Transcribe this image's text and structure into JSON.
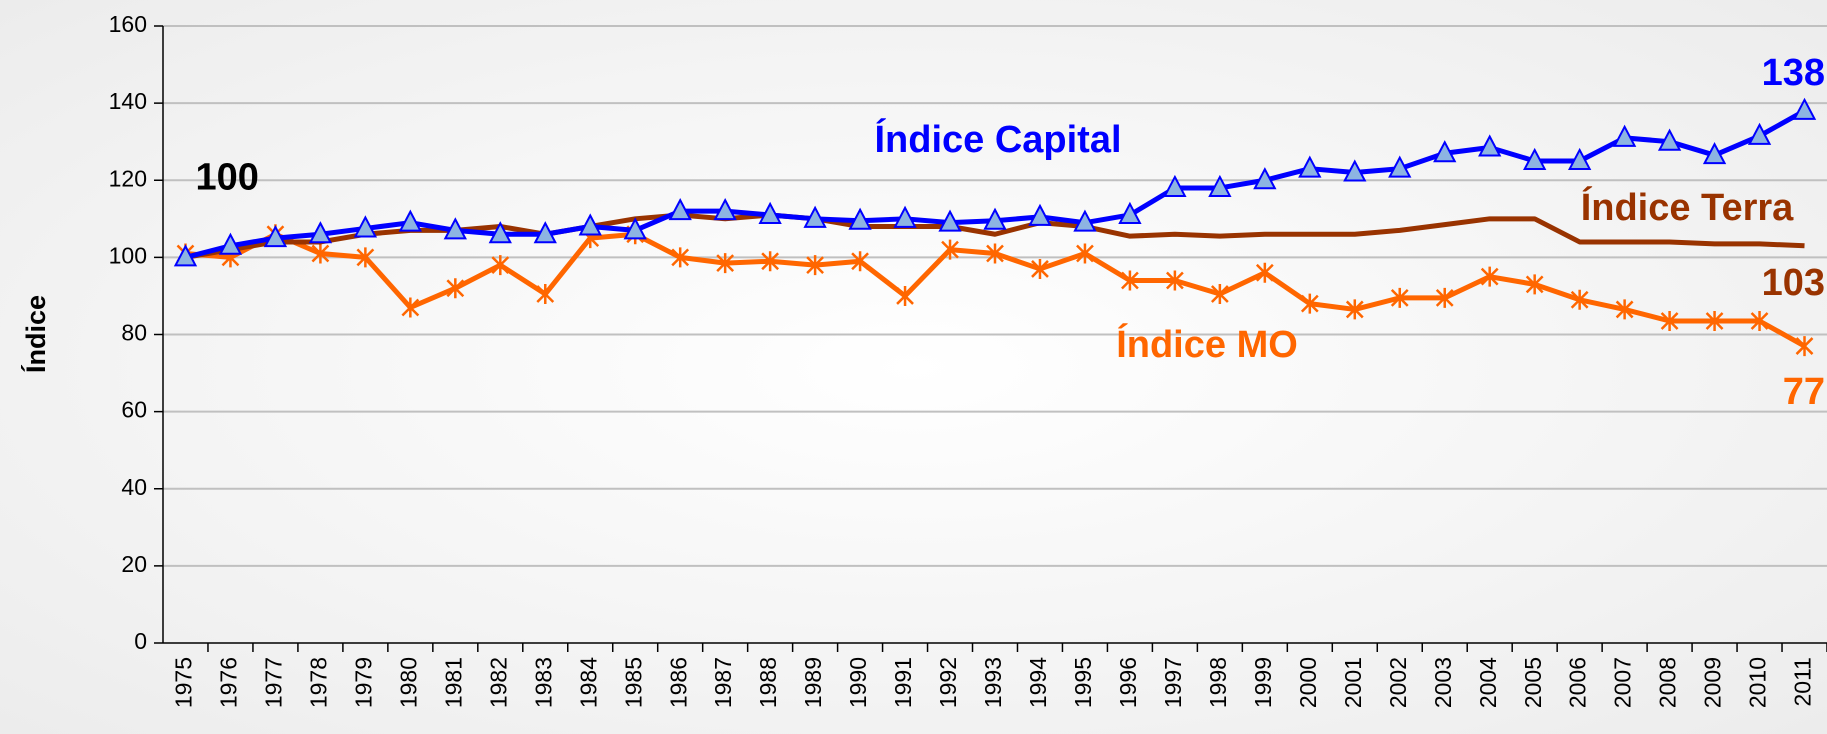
{
  "chart_data": {
    "type": "line",
    "y_label": "Índice",
    "categories": [
      "1975",
      "1976",
      "1977",
      "1978",
      "1979",
      "1980",
      "1981",
      "1982",
      "1983",
      "1984",
      "1985",
      "1986",
      "1987",
      "1988",
      "1989",
      "1990",
      "1991",
      "1992",
      "1993",
      "1994",
      "1995",
      "1996",
      "1997",
      "1998",
      "1999",
      "2000",
      "2001",
      "2002",
      "2003",
      "2004",
      "2005",
      "2006",
      "2007",
      "2008",
      "2009",
      "2010",
      "2011"
    ],
    "ylim": [
      0,
      160
    ],
    "yticks": [
      0,
      20,
      40,
      60,
      80,
      100,
      120,
      140,
      160
    ],
    "grid": true,
    "start_label_color": "#000000",
    "series": [
      {
        "name": "Índice Capital",
        "color": "#0000ff",
        "marker": "triangle",
        "marker_fill": "#8db4e2",
        "values": [
          100,
          103,
          105,
          106,
          107.5,
          109,
          107,
          106,
          106,
          108,
          107,
          112,
          112,
          111,
          110,
          109.5,
          110,
          109,
          109.5,
          110.5,
          109,
          111,
          118,
          118,
          120,
          123,
          122,
          123,
          127,
          128.5,
          125,
          125,
          131,
          130,
          126.5,
          131.5,
          138
        ],
        "value_labels": [
          "100",
          null,
          null,
          null,
          null,
          null,
          null,
          null,
          null,
          null,
          null,
          null,
          null,
          null,
          null,
          null,
          null,
          null,
          null,
          null,
          null,
          null,
          null,
          null,
          null,
          null,
          null,
          null,
          null,
          null,
          null,
          null,
          null,
          null,
          null,
          null,
          "138"
        ]
      },
      {
        "name": "Índice Terra",
        "color": "#993300",
        "marker": "none",
        "values": [
          100,
          102,
          104,
          104,
          106,
          107,
          107,
          108,
          106,
          108,
          110,
          111,
          110,
          111,
          110,
          108,
          108,
          108,
          106,
          109,
          108,
          105.5,
          106,
          105.5,
          106,
          106,
          106,
          107,
          108.5,
          110,
          110,
          104,
          104,
          104,
          103.5,
          103.5,
          103
        ],
        "value_labels": [
          null,
          null,
          null,
          null,
          null,
          null,
          null,
          null,
          null,
          null,
          null,
          null,
          null,
          null,
          null,
          null,
          null,
          null,
          null,
          null,
          null,
          null,
          null,
          null,
          null,
          null,
          null,
          null,
          null,
          null,
          null,
          null,
          null,
          null,
          null,
          null,
          "103"
        ]
      },
      {
        "name": "Índice MO",
        "color": "#ff6600",
        "marker": "asterisk",
        "values": [
          101,
          100,
          106,
          101,
          100,
          87,
          92,
          98,
          90.5,
          105,
          106,
          100,
          98.5,
          99,
          98,
          99,
          90,
          102,
          101,
          97,
          101,
          94,
          94,
          90.5,
          96,
          88,
          86.5,
          89.5,
          89.5,
          95,
          93,
          89,
          86.5,
          83.5,
          83.5,
          83.5,
          77
        ],
        "value_labels": [
          null,
          null,
          null,
          null,
          null,
          null,
          null,
          null,
          null,
          null,
          null,
          null,
          null,
          null,
          null,
          null,
          null,
          null,
          null,
          null,
          null,
          null,
          null,
          null,
          null,
          null,
          null,
          null,
          null,
          null,
          null,
          null,
          null,
          null,
          null,
          null,
          "77"
        ]
      }
    ]
  }
}
